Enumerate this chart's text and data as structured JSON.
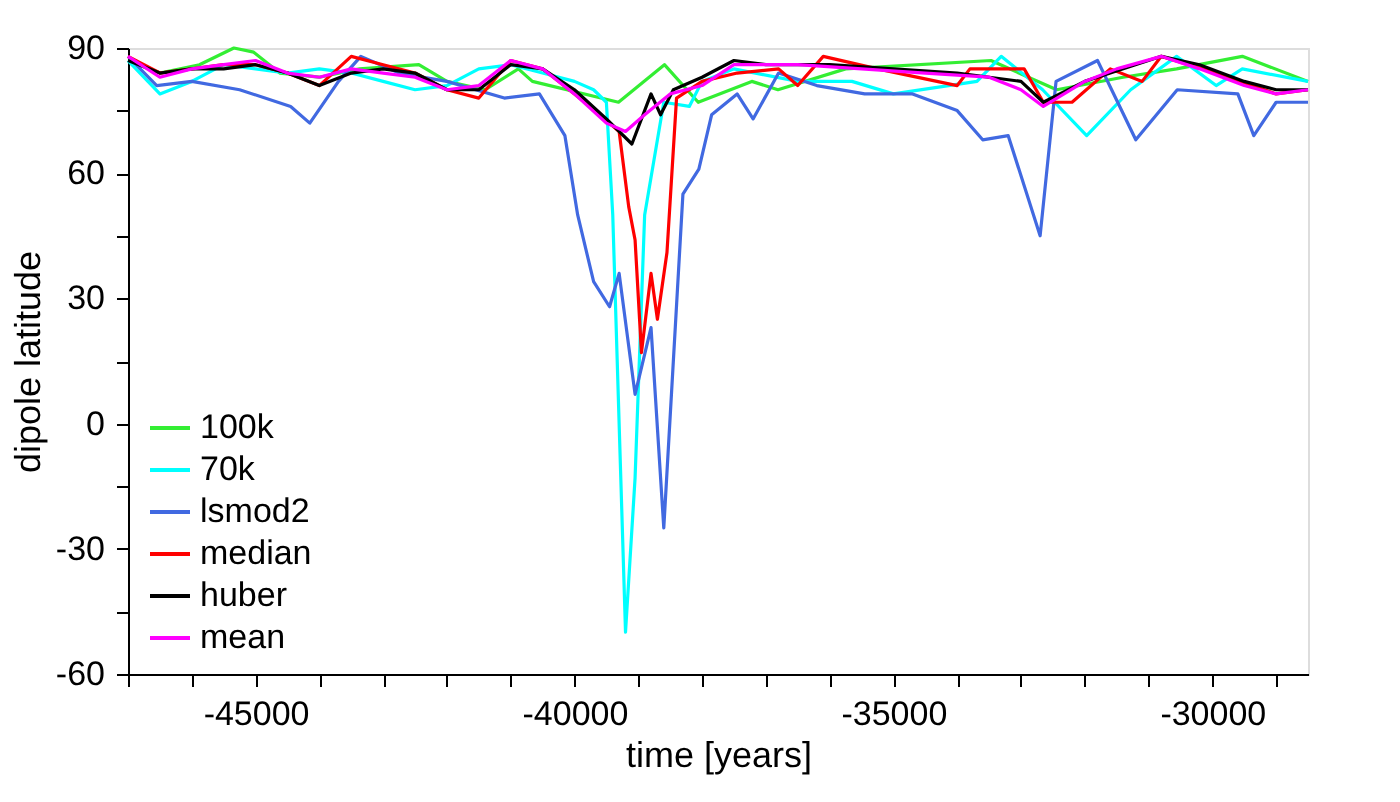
{
  "chart_data": {
    "type": "line",
    "xlabel": "time [years]",
    "ylabel": "dipole latitude",
    "xlim": [
      -47000,
      -28500
    ],
    "ylim": [
      -60,
      90
    ],
    "xticks": [
      {
        "value": -47000,
        "label": null
      },
      {
        "value": -46000,
        "label": null
      },
      -45000,
      {
        "value": -44000,
        "label": null
      },
      {
        "value": -43000,
        "label": null
      },
      {
        "value": -42000,
        "label": null
      },
      {
        "value": -41000,
        "label": null
      },
      -40000,
      {
        "value": -39000,
        "label": null
      },
      {
        "value": -38000,
        "label": null
      },
      {
        "value": -37000,
        "label": null
      },
      {
        "value": -36000,
        "label": null
      },
      -35000,
      {
        "value": -34000,
        "label": null
      },
      {
        "value": -33000,
        "label": null
      },
      {
        "value": -32000,
        "label": null
      },
      {
        "value": -31000,
        "label": null
      },
      -30000,
      {
        "value": -29000,
        "label": null
      }
    ],
    "yticks": [
      -60,
      {
        "value": -45,
        "label": null
      },
      -30,
      {
        "value": -15,
        "label": null
      },
      0,
      {
        "value": 15,
        "label": null
      },
      30,
      {
        "value": 45,
        "label": null
      },
      60,
      {
        "value": 75,
        "label": null
      },
      90
    ],
    "grid": false,
    "legend": "bottom left",
    "line_style": "solid",
    "marker": "none",
    "series": [
      {
        "name": "100k",
        "color": "#33ee33",
        "x": [
          -47000,
          -46500,
          -45880,
          -45340,
          -45030,
          -44620,
          -44000,
          -43370,
          -42440,
          -42000,
          -41400,
          -40880,
          -40660,
          -39310,
          -38590,
          -38060,
          -37220,
          -36810,
          -35750,
          -33470,
          -32440,
          -31400,
          -30560,
          -29530,
          -28500
        ],
        "values": [
          87,
          84,
          86,
          90,
          89,
          84,
          83,
          85,
          86,
          82,
          80,
          85,
          82,
          77,
          86,
          77,
          82,
          80,
          85,
          87,
          80,
          83,
          85,
          88,
          82
        ]
      },
      {
        "name": "70k",
        "color": "#00ffff",
        "x": [
          -47000,
          -46500,
          -46000,
          -45500,
          -45000,
          -44500,
          -44000,
          -43500,
          -43000,
          -42500,
          -42000,
          -41500,
          -41000,
          -40500,
          -40000,
          -39700,
          -39500,
          -39400,
          -39200,
          -39050,
          -38900,
          -38600,
          -38200,
          -38000,
          -37500,
          -36500,
          -35650,
          -35000,
          -33690,
          -33310,
          -32660,
          -31970,
          -31280,
          -30560,
          -29940,
          -29530,
          -28500
        ],
        "values": [
          87,
          79,
          82,
          86,
          85,
          84,
          85,
          84,
          82,
          80,
          81,
          85,
          86,
          84,
          82,
          80,
          77,
          50,
          -50,
          -13,
          50,
          77,
          76,
          82,
          85,
          82,
          82,
          79,
          82,
          88,
          80,
          69,
          80,
          88,
          81,
          85,
          82
        ]
      },
      {
        "name": "lsmod2",
        "color": "#4169e1",
        "x": [
          -47000,
          -46550,
          -46000,
          -45250,
          -44450,
          -44150,
          -43700,
          -43350,
          -42750,
          -42000,
          -41100,
          -40550,
          -40150,
          -39950,
          -39700,
          -39450,
          -39300,
          -39050,
          -38800,
          -38600,
          -38300,
          -38050,
          -37850,
          -37450,
          -37200,
          -36800,
          -36200,
          -35450,
          -34700,
          -34000,
          -33600,
          -33200,
          -32700,
          -32450,
          -31800,
          -31200,
          -30550,
          -29600,
          -29350,
          -29000,
          -28500
        ],
        "values": [
          88,
          81,
          82,
          80,
          76,
          72,
          82,
          88,
          84,
          82,
          78,
          79,
          69,
          50,
          34,
          28,
          36,
          7,
          23,
          -25,
          55,
          61,
          74,
          79,
          73,
          84,
          81,
          79,
          79,
          75,
          68,
          69,
          45,
          82,
          87,
          68,
          80,
          79,
          69,
          77,
          77
        ]
      },
      {
        "name": "median",
        "color": "#ff0000",
        "x": [
          -47000,
          -46500,
          -46000,
          -45500,
          -45000,
          -44500,
          -44000,
          -43500,
          -43000,
          -42500,
          -42000,
          -41500,
          -41000,
          -40500,
          -40000,
          -39600,
          -39300,
          -39150,
          -39050,
          -38950,
          -38800,
          -38700,
          -38550,
          -38400,
          -38000,
          -37450,
          -36800,
          -36500,
          -36100,
          -35250,
          -34000,
          -33800,
          -32950,
          -32650,
          -32200,
          -31600,
          -31100,
          -30800,
          -30150,
          -29550,
          -29000,
          -28500
        ],
        "values": [
          88,
          84,
          85,
          86,
          86,
          84,
          81,
          88,
          86,
          84,
          80,
          78,
          87,
          85,
          79,
          74,
          70,
          52,
          44,
          17,
          36,
          25,
          41,
          78,
          82,
          84,
          85,
          81,
          88,
          85,
          81,
          85,
          85,
          77,
          77,
          85,
          82,
          88,
          85,
          82,
          79,
          80
        ]
      },
      {
        "name": "huber",
        "color": "#000000",
        "x": [
          -47000,
          -46500,
          -46000,
          -45500,
          -45000,
          -44500,
          -44000,
          -43500,
          -43000,
          -42500,
          -42000,
          -41500,
          -41000,
          -40500,
          -40000,
          -39500,
          -39100,
          -38800,
          -38650,
          -38450,
          -38000,
          -37500,
          -37000,
          -36000,
          -35000,
          -34000,
          -33000,
          -32650,
          -32000,
          -31600,
          -30800,
          -30200,
          -29500,
          -29000,
          -28500
        ],
        "values": [
          87,
          84,
          85,
          85,
          86,
          84,
          81,
          84,
          85,
          84,
          80,
          80,
          86,
          85,
          80,
          73,
          67,
          79,
          74,
          80,
          83,
          87,
          86,
          86,
          85,
          84,
          82,
          77,
          82,
          84,
          88,
          86,
          82,
          80,
          80
        ]
      },
      {
        "name": "mean",
        "color": "#ff00ff",
        "x": [
          -47000,
          -46500,
          -46000,
          -45500,
          -45000,
          -44500,
          -44000,
          -43500,
          -43000,
          -42500,
          -42000,
          -41500,
          -41000,
          -40500,
          -40000,
          -39500,
          -39200,
          -38900,
          -38500,
          -38000,
          -37500,
          -36500,
          -35500,
          -34500,
          -33500,
          -33000,
          -32650,
          -32000,
          -31500,
          -30800,
          -30200,
          -29500,
          -29000,
          -28500
        ],
        "values": [
          88,
          83,
          85,
          86,
          87,
          84,
          83,
          85,
          84,
          83,
          80,
          81,
          87,
          85,
          79,
          72,
          70,
          74,
          79,
          81,
          86,
          86,
          85,
          84,
          83,
          80,
          76,
          82,
          85,
          88,
          85,
          81,
          79,
          80
        ]
      }
    ]
  }
}
